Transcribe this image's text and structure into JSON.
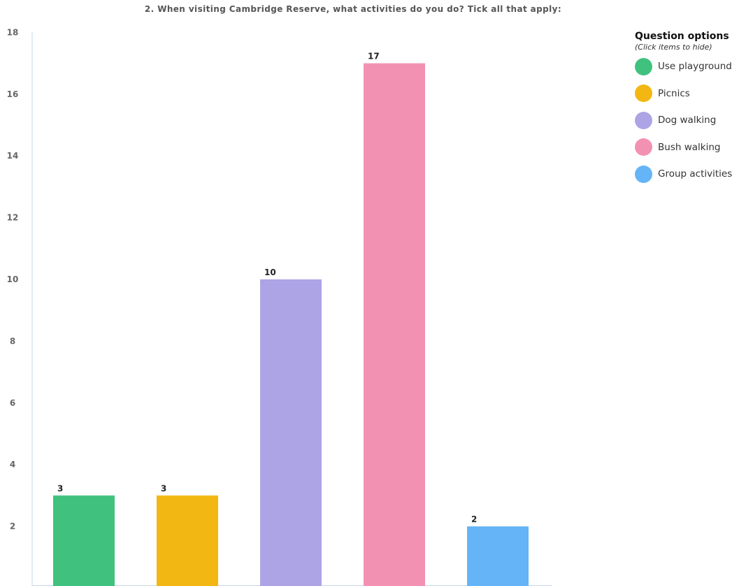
{
  "chart_data": {
    "type": "bar",
    "title": "2. When visiting Cambridge Reserve, what activities do you do? Tick all that apply:",
    "categories": [
      "Use playground",
      "Picnics",
      "Dog walking",
      "Bush walking",
      "Group activities"
    ],
    "values": [
      3,
      3,
      10,
      17,
      2
    ],
    "colors": [
      "#40c27e",
      "#f2b712",
      "#aca4e5",
      "#f391b3",
      "#65b4f7"
    ],
    "ylim": [
      0,
      18
    ],
    "yticks": [
      2,
      4,
      6,
      8,
      10,
      12,
      14,
      16,
      18
    ],
    "xlabel": "",
    "ylabel": "",
    "grid": false,
    "data_labels": true,
    "legend_position": "right"
  },
  "legend": {
    "title": "Question options",
    "subtitle": "(Click items to hide)",
    "items": [
      {
        "label": "Use playground",
        "color": "#40c27e"
      },
      {
        "label": "Picnics",
        "color": "#f2b712"
      },
      {
        "label": "Dog walking",
        "color": "#aca4e5"
      },
      {
        "label": "Bush walking",
        "color": "#f391b3"
      },
      {
        "label": "Group activities",
        "color": "#65b4f7"
      }
    ]
  }
}
